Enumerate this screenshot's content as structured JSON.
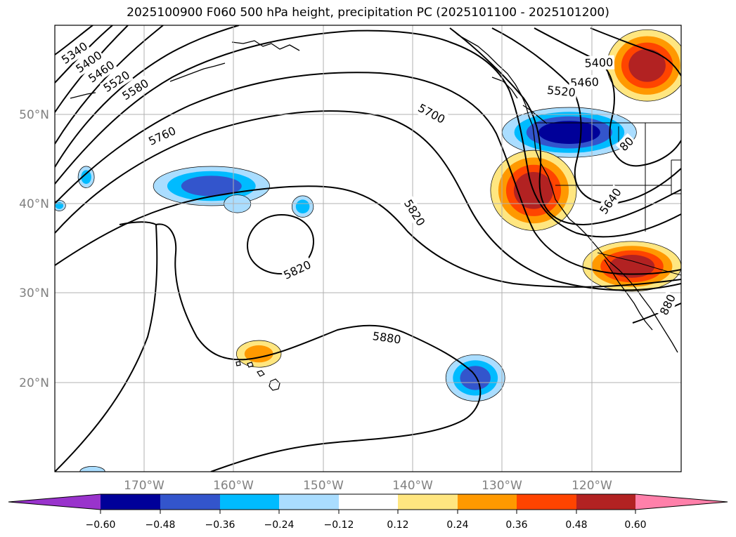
{
  "title": "2025100900 F060 500 hPa height, precipitation PC (2025101100 - 2025101200)",
  "map": {
    "lon_range": [
      -180,
      -110
    ],
    "lat_range": [
      10,
      60
    ],
    "lat_labels": [
      {
        "lat": 50,
        "text": "50°N"
      },
      {
        "lat": 40,
        "text": "40°N"
      },
      {
        "lat": 30,
        "text": "30°N"
      },
      {
        "lat": 20,
        "text": "20°N"
      }
    ],
    "lon_labels": [
      {
        "lon": -170,
        "text": "170°W"
      },
      {
        "lon": -160,
        "text": "160°W"
      },
      {
        "lon": -150,
        "text": "150°W"
      },
      {
        "lon": -140,
        "text": "140°W"
      },
      {
        "lon": -130,
        "text": "130°W"
      },
      {
        "lon": -120,
        "text": "120°W"
      }
    ],
    "grid_color": "#b0b0b0",
    "contour_labels": [
      {
        "text": "5340",
        "lon": -177.8,
        "lat": 56.9,
        "rot": -35
      },
      {
        "text": "5400",
        "lon": -176.2,
        "lat": 55.9,
        "rot": -35
      },
      {
        "text": "5460",
        "lon": -174.8,
        "lat": 54.8,
        "rot": -35
      },
      {
        "text": "5520",
        "lon": -173.1,
        "lat": 53.7,
        "rot": -33
      },
      {
        "text": "5580",
        "lon": -171.0,
        "lat": 52.8,
        "rot": -32
      },
      {
        "text": "5760",
        "lon": -168.0,
        "lat": 47.6,
        "rot": -25
      },
      {
        "text": "5700",
        "lon": -137.9,
        "lat": 50.1,
        "rot": 28
      },
      {
        "text": "5400",
        "lon": -119.2,
        "lat": 55.8,
        "rot": -2
      },
      {
        "text": "5460",
        "lon": -120.8,
        "lat": 53.6,
        "rot": -2
      },
      {
        "text": "5520",
        "lon": -123.4,
        "lat": 52.6,
        "rot": 6
      },
      {
        "text": "5820",
        "lon": -139.8,
        "lat": 39.0,
        "rot": 58
      },
      {
        "text": "5820",
        "lon": -152.9,
        "lat": 32.6,
        "rot": -25
      },
      {
        "text": "5880",
        "lon": -142.9,
        "lat": 25.0,
        "rot": 8
      },
      {
        "text": "5640",
        "lon": -117.9,
        "lat": 40.3,
        "rot": -55
      },
      {
        "text": "80",
        "lon": -116.1,
        "lat": 46.7,
        "rot": -45
      },
      {
        "text": "880",
        "lon": -111.5,
        "lat": 28.7,
        "rot": -65
      }
    ],
    "fields": [
      {
        "type": "negative",
        "lon": -122.5,
        "lat": 48.0,
        "rlon": 7.5,
        "rlat": 2.8,
        "levels": 4
      },
      {
        "type": "positive",
        "lon": -126.5,
        "lat": 41.5,
        "rlon": 4.8,
        "rlat": 4.5,
        "levels": 4
      },
      {
        "type": "positive",
        "lon": -115.5,
        "lat": 33.0,
        "rlon": 5.5,
        "rlat": 2.8,
        "levels": 4
      },
      {
        "type": "positive",
        "lon": -113.8,
        "lat": 55.5,
        "rlon": 4.5,
        "rlat": 4.0,
        "levels": 4
      },
      {
        "type": "negative",
        "lon": -162.5,
        "lat": 42.0,
        "rlon": 6.5,
        "rlat": 2.2,
        "levels": 3
      },
      {
        "type": "negative",
        "lon": -133.0,
        "lat": 20.5,
        "rlon": 3.3,
        "rlat": 2.6,
        "levels": 3
      },
      {
        "type": "positive",
        "lon": -157.2,
        "lat": 23.2,
        "rlon": 2.5,
        "rlat": 1.5,
        "levels": 2
      },
      {
        "type": "negative",
        "lon": -176.5,
        "lat": 43.0,
        "rlon": 0.9,
        "rlat": 1.2,
        "levels": 2
      },
      {
        "type": "negative",
        "lon": -152.3,
        "lat": 39.7,
        "rlon": 1.2,
        "rlat": 1.2,
        "levels": 2
      },
      {
        "type": "negative",
        "lon": -159.6,
        "lat": 40.0,
        "rlon": 1.5,
        "rlat": 1.0,
        "levels": 1
      },
      {
        "type": "negative",
        "lon": -179.5,
        "lat": 39.8,
        "rlon": 0.7,
        "rlat": 0.6,
        "levels": 2
      },
      {
        "type": "negative",
        "lon": -175.8,
        "lat": 10.0,
        "rlon": 1.4,
        "rlat": 0.6,
        "levels": 1
      }
    ]
  },
  "colorbar": {
    "colors": [
      "#9933cc",
      "#000099",
      "#3355cc",
      "#00bbff",
      "#aaddff",
      "#ffffff",
      "#ffe680",
      "#ff9900",
      "#ff4400",
      "#b22222",
      "#ff80aa"
    ],
    "tick_labels": [
      "−0.60",
      "−0.48",
      "−0.36",
      "−0.24",
      "−0.12",
      "0.12",
      "0.24",
      "0.36",
      "0.48",
      "0.60"
    ]
  }
}
